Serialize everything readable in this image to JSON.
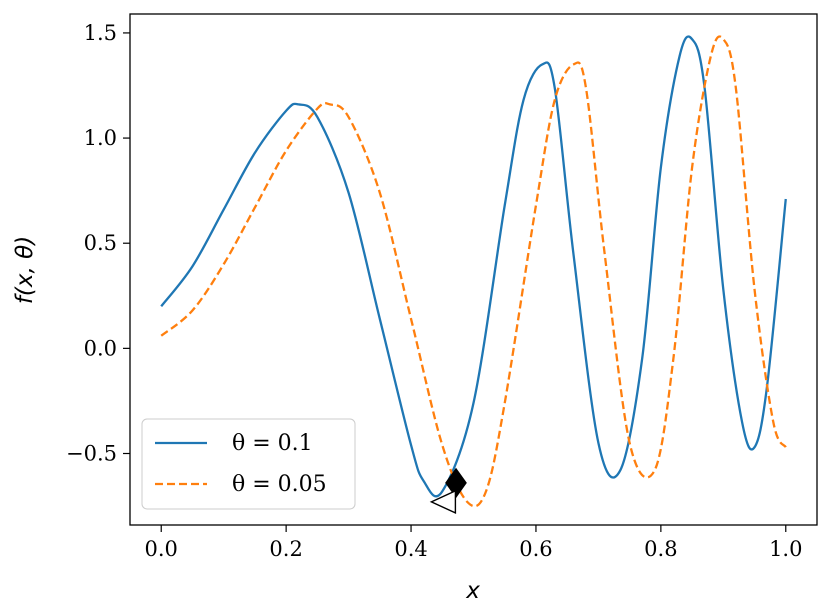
{
  "chart_data": {
    "type": "line",
    "title": "",
    "xlabel": "x",
    "ylabel": "f(x, θ)",
    "xlim": [
      -0.05,
      1.05
    ],
    "ylim": [
      -0.84,
      1.59
    ],
    "x_ticks": [
      0.0,
      0.2,
      0.4,
      0.6,
      0.8,
      1.0
    ],
    "x_tick_labels": [
      "0.0",
      "0.2",
      "0.4",
      "0.6",
      "0.8",
      "1.0"
    ],
    "y_ticks": [
      -0.5,
      0.0,
      0.5,
      1.0,
      1.5
    ],
    "y_tick_labels": [
      "−0.5",
      "0.0",
      "0.5",
      "1.0",
      "1.5"
    ],
    "grid": false,
    "legend_position": "lower-left",
    "series": [
      {
        "name": "θ = 0.1",
        "color": "#1f77b4",
        "line_style": "solid",
        "x": [
          0.0,
          0.05,
          0.1,
          0.15,
          0.2,
          0.22,
          0.25,
          0.3,
          0.35,
          0.4,
          0.42,
          0.45,
          0.5,
          0.55,
          0.58,
          0.61,
          0.63,
          0.66,
          0.7,
          0.735,
          0.77,
          0.8,
          0.83,
          0.85,
          0.87,
          0.9,
          0.93,
          0.95,
          0.97,
          1.0
        ],
        "y": [
          0.2,
          0.39,
          0.66,
          0.93,
          1.13,
          1.16,
          1.1,
          0.74,
          0.14,
          -0.46,
          -0.63,
          -0.68,
          -0.26,
          0.68,
          1.18,
          1.35,
          1.24,
          0.45,
          -0.45,
          -0.58,
          -0.05,
          0.86,
          1.39,
          1.47,
          1.24,
          0.28,
          -0.35,
          -0.47,
          -0.18,
          0.71
        ]
      },
      {
        "name": "θ = 0.05",
        "color": "#ff7f0e",
        "line_style": "dashed",
        "x": [
          0.0,
          0.05,
          0.1,
          0.15,
          0.2,
          0.25,
          0.27,
          0.3,
          0.35,
          0.4,
          0.45,
          0.49,
          0.52,
          0.55,
          0.6,
          0.63,
          0.66,
          0.68,
          0.71,
          0.75,
          0.79,
          0.82,
          0.85,
          0.88,
          0.9,
          0.92,
          0.95,
          0.98,
          1.0
        ],
        "y": [
          0.06,
          0.18,
          0.4,
          0.67,
          0.94,
          1.14,
          1.16,
          1.1,
          0.74,
          0.14,
          -0.46,
          -0.73,
          -0.68,
          -0.26,
          0.68,
          1.18,
          1.35,
          1.24,
          0.45,
          -0.45,
          -0.58,
          -0.05,
          0.86,
          1.39,
          1.47,
          1.24,
          0.28,
          -0.35,
          -0.47
        ]
      }
    ],
    "markers": [
      {
        "name": "filled-diamond-marker",
        "x": 0.472,
        "y": -0.64,
        "shape": "diamond",
        "fill": "#000000"
      },
      {
        "name": "open-triangle-marker",
        "x": 0.455,
        "y": -0.73,
        "shape": "triangle-left",
        "fill": "#ffffff"
      }
    ]
  }
}
